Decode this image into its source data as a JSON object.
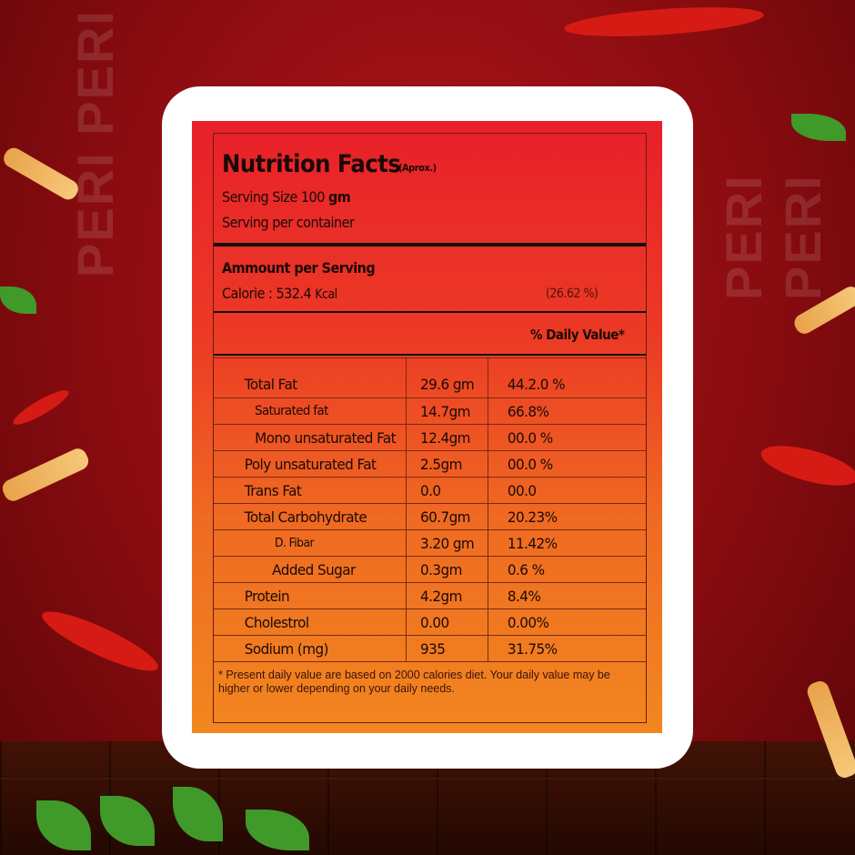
{
  "background": {
    "watermark": "PERI PERI"
  },
  "label": {
    "title": "Nutrition Facts",
    "title_note": "(Aprox.)",
    "serving_size_label": "Serving Size 100",
    "serving_size_unit": "gm",
    "serving_per_container": "Serving per container",
    "amount_heading": "Ammount per Serving",
    "calorie_label": "Calorie : 532.4",
    "calorie_unit": "Kcal",
    "calorie_percent": "(26.62 %)",
    "daily_value_heading": "% Daily Value*",
    "rows": [
      {
        "name": "Total Fat",
        "amount": "29.6 gm",
        "dv": "44.2.0 %"
      },
      {
        "name": "Saturated  fat",
        "amount": "14.7gm",
        "dv": "66.8%"
      },
      {
        "name": "Mono unsaturated Fat",
        "amount": "12.4gm",
        "dv": "00.0 %"
      },
      {
        "name": "Poly unsaturated Fat",
        "amount": "2.5gm",
        "dv": "00.0 %"
      },
      {
        "name": "Trans Fat",
        "amount": "0.0",
        "dv": "00.0"
      },
      {
        "name": "Total Carbohydrate",
        "amount": "60.7gm",
        "dv": "20.23%"
      },
      {
        "name": "D. Fibar",
        "amount": "3.20 gm",
        "dv": "11.42%"
      },
      {
        "name": "Added Sugar",
        "amount": "0.3gm",
        "dv": "0.6 %"
      },
      {
        "name": "Protein",
        "amount": "4.2gm",
        "dv": "8.4%"
      },
      {
        "name": "Cholestrol",
        "amount": "0.00",
        "dv": "0.00%"
      },
      {
        "name": "Sodium (mg)",
        "amount": "935",
        "dv": "31.75%"
      }
    ],
    "footnote": "* Present daily value are based on 2000 calories diet. Your daily value may be higher or lower depending on your daily needs."
  }
}
